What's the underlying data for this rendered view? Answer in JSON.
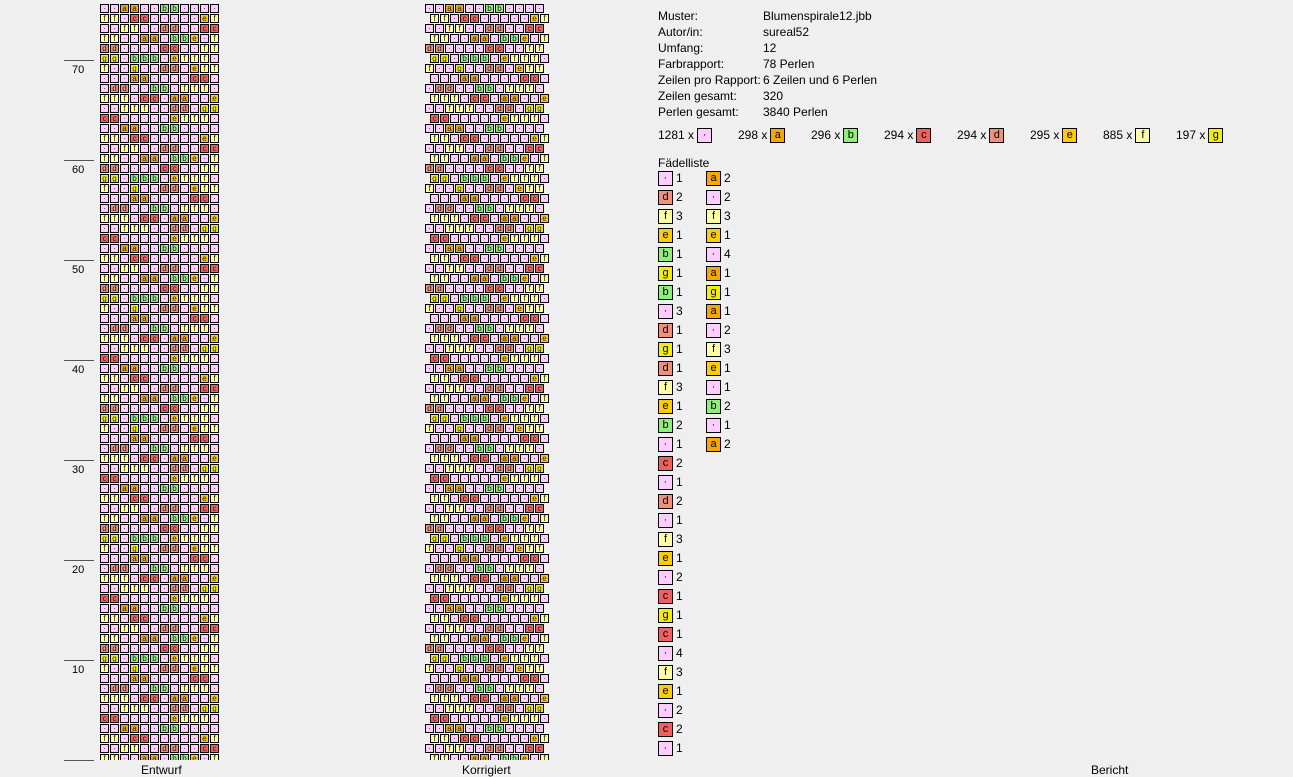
{
  "colors": {
    "pink": "#ffccff",
    "a": "#f7a800",
    "b": "#8ef078",
    "c": "#f06060",
    "d": "#f0907a",
    "e": "#ffcc00",
    "f": "#ffffa0",
    "g": "#f2f000"
  },
  "ruler_labels": [
    "70",
    "60",
    "50",
    "40",
    "30",
    "20",
    "10"
  ],
  "captions": {
    "entwurf": "Entwurf",
    "korrigiert": "Korrigiert",
    "bericht": "Bericht"
  },
  "info": [
    {
      "label": "Muster:",
      "value": "Blumenspirale12.jbb"
    },
    {
      "label": "Autor/in:",
      "value": "sureal52"
    },
    {
      "label": "Umfang:",
      "value": "12"
    },
    {
      "label": "Farbrapport:",
      "value": "78 Perlen"
    },
    {
      "label": "Zeilen pro Rapport:",
      "value": "6 Zeilen und 6 Perlen"
    },
    {
      "label": "Zeilen gesamt:",
      "value": "320"
    },
    {
      "label": "Perlen gesamt:",
      "value": "3840 Perlen"
    }
  ],
  "counts": [
    {
      "count": "1281 x",
      "code": "·",
      "color": "pink"
    },
    {
      "count": "298 x",
      "code": "a",
      "color": "a"
    },
    {
      "count": "296 x",
      "code": "b",
      "color": "b"
    },
    {
      "count": "294 x",
      "code": "c",
      "color": "c"
    },
    {
      "count": "294 x",
      "code": "d",
      "color": "d"
    },
    {
      "count": "295 x",
      "code": "e",
      "color": "e"
    },
    {
      "count": "885 x",
      "code": "f",
      "color": "f"
    },
    {
      "count": "197 x",
      "code": "g",
      "color": "g"
    }
  ],
  "faedelliste_title": "Fädelliste",
  "faedelliste": [
    [
      {
        "code": "·",
        "n": "1"
      },
      {
        "code": "d",
        "n": "2"
      },
      {
        "code": "f",
        "n": "3"
      },
      {
        "code": "e",
        "n": "1"
      },
      {
        "code": "b",
        "n": "1"
      },
      {
        "code": "g",
        "n": "1"
      },
      {
        "code": "b",
        "n": "1"
      },
      {
        "code": "·",
        "n": "3"
      },
      {
        "code": "d",
        "n": "1"
      },
      {
        "code": "g",
        "n": "1"
      },
      {
        "code": "d",
        "n": "1"
      },
      {
        "code": "f",
        "n": "3"
      },
      {
        "code": "e",
        "n": "1"
      },
      {
        "code": "b",
        "n": "2"
      },
      {
        "code": "·",
        "n": "1"
      },
      {
        "code": "c",
        "n": "2"
      },
      {
        "code": "·",
        "n": "1"
      },
      {
        "code": "d",
        "n": "2"
      },
      {
        "code": "·",
        "n": "1"
      },
      {
        "code": "f",
        "n": "3"
      },
      {
        "code": "e",
        "n": "1"
      },
      {
        "code": "·",
        "n": "2"
      },
      {
        "code": "c",
        "n": "1"
      },
      {
        "code": "g",
        "n": "1"
      },
      {
        "code": "c",
        "n": "1"
      },
      {
        "code": "·",
        "n": "4"
      },
      {
        "code": "f",
        "n": "3"
      },
      {
        "code": "e",
        "n": "1"
      },
      {
        "code": "·",
        "n": "2"
      },
      {
        "code": "c",
        "n": "2"
      },
      {
        "code": "·",
        "n": "1"
      }
    ],
    [
      {
        "code": "a",
        "n": "2"
      },
      {
        "code": "·",
        "n": "2"
      },
      {
        "code": "f",
        "n": "3"
      },
      {
        "code": "e",
        "n": "1"
      },
      {
        "code": "·",
        "n": "4"
      },
      {
        "code": "a",
        "n": "1"
      },
      {
        "code": "g",
        "n": "1"
      },
      {
        "code": "a",
        "n": "1"
      },
      {
        "code": "·",
        "n": "2"
      },
      {
        "code": "f",
        "n": "3"
      },
      {
        "code": "e",
        "n": "1"
      },
      {
        "code": "·",
        "n": "1"
      },
      {
        "code": "b",
        "n": "2"
      },
      {
        "code": "·",
        "n": "1"
      },
      {
        "code": "a",
        "n": "2"
      }
    ]
  ],
  "pattern": [
    "··aa··bb····",
    "···efff·cc··",
    "ff··dd··cc··",
    "e·fff··aa·bb",
    "··cc··ffdd··",
    "·gg·bbb·efff",
    "dd·efff··g··",
    "··aa····cc··",
    "fff··dd··bb·",
    "·cc·aa··efff",
    "gg··fff··dd·",
    "··efff·cc···"
  ]
}
